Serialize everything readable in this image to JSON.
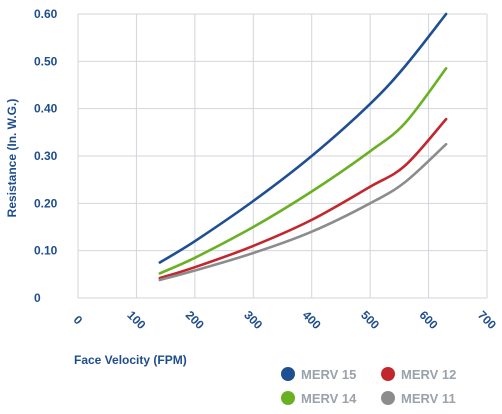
{
  "chart_data": {
    "type": "line",
    "title": "",
    "xlabel": "Face Velocity (FPM)",
    "ylabel": "Resistance (In. W.G.)",
    "xlim": [
      0,
      700
    ],
    "ylim": [
      0,
      0.6
    ],
    "x_ticks": [
      "0",
      "100",
      "200",
      "300",
      "400",
      "500",
      "600",
      "700"
    ],
    "y_ticks": [
      "0",
      "0.10",
      "0.20",
      "0.30",
      "0.40",
      "0.50",
      "0.60"
    ],
    "grid": true,
    "legend_position": "bottom-right",
    "series": [
      {
        "name": "MERV 15",
        "color": "#1f4f93",
        "points": [
          [
            140,
            0.075
          ],
          [
            200,
            0.12
          ],
          [
            300,
            0.205
          ],
          [
            400,
            0.3
          ],
          [
            500,
            0.41
          ],
          [
            560,
            0.49
          ],
          [
            630,
            0.6
          ]
        ]
      },
      {
        "name": "MERV 12",
        "color": "#c1272d",
        "points": [
          [
            140,
            0.042
          ],
          [
            200,
            0.065
          ],
          [
            300,
            0.11
          ],
          [
            400,
            0.165
          ],
          [
            500,
            0.235
          ],
          [
            560,
            0.28
          ],
          [
            630,
            0.378
          ]
        ]
      },
      {
        "name": "MERV 14",
        "color": "#6ab023",
        "points": [
          [
            140,
            0.052
          ],
          [
            200,
            0.085
          ],
          [
            300,
            0.15
          ],
          [
            400,
            0.225
          ],
          [
            500,
            0.31
          ],
          [
            560,
            0.37
          ],
          [
            630,
            0.485
          ]
        ]
      },
      {
        "name": "MERV 11",
        "color": "#8c8c8c",
        "points": [
          [
            140,
            0.038
          ],
          [
            200,
            0.058
          ],
          [
            300,
            0.095
          ],
          [
            400,
            0.14
          ],
          [
            500,
            0.2
          ],
          [
            560,
            0.245
          ],
          [
            630,
            0.325
          ]
        ]
      }
    ]
  }
}
